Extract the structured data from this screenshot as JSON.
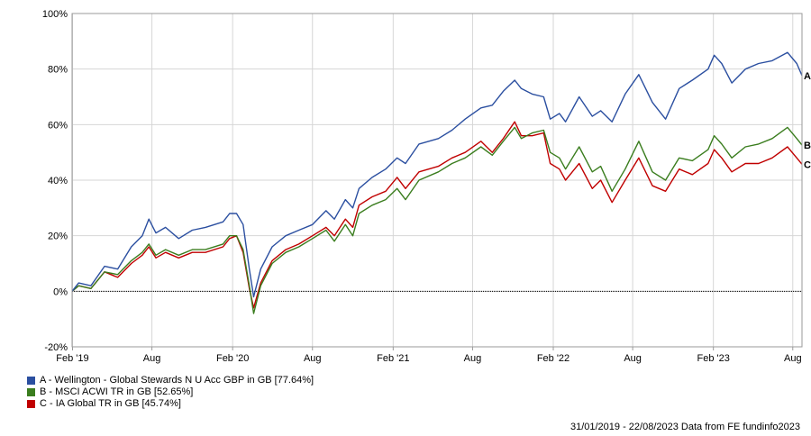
{
  "chart_data": {
    "type": "line",
    "x_range": [
      "2019-01-31",
      "2023-08-22"
    ],
    "x_ticks": [
      {
        "date": "2019-02-01",
        "label": "Feb '19"
      },
      {
        "date": "2019-08-01",
        "label": "Aug"
      },
      {
        "date": "2020-02-01",
        "label": "Feb '20"
      },
      {
        "date": "2020-08-01",
        "label": "Aug"
      },
      {
        "date": "2021-02-01",
        "label": "Feb '21"
      },
      {
        "date": "2021-08-01",
        "label": "Aug"
      },
      {
        "date": "2022-02-01",
        "label": "Feb '22"
      },
      {
        "date": "2022-08-01",
        "label": "Aug"
      },
      {
        "date": "2023-02-01",
        "label": "Feb '23"
      },
      {
        "date": "2023-08-01",
        "label": "Aug"
      }
    ],
    "ylim": [
      -20,
      100
    ],
    "y_ticks": [
      -20,
      0,
      20,
      40,
      60,
      80,
      100
    ],
    "y_tick_labels": [
      "-20%",
      "0%",
      "20%",
      "40%",
      "60%",
      "80%",
      "100%"
    ],
    "grid": true,
    "zero_line": true,
    "legend_placement": "bottom-left",
    "series": [
      {
        "name": "A - Wellington - Global Stewards N U Acc GBP in GB [77.64%]",
        "end_label": "A",
        "color": "#2b4fa0",
        "points": [
          [
            "2019-01-31",
            0
          ],
          [
            "2019-02-15",
            3
          ],
          [
            "2019-03-15",
            2
          ],
          [
            "2019-04-15",
            9
          ],
          [
            "2019-05-15",
            8
          ],
          [
            "2019-06-15",
            16
          ],
          [
            "2019-07-10",
            20
          ],
          [
            "2019-07-25",
            26
          ],
          [
            "2019-08-10",
            21
          ],
          [
            "2019-09-01",
            23
          ],
          [
            "2019-10-01",
            19
          ],
          [
            "2019-11-01",
            22
          ],
          [
            "2019-12-01",
            23
          ],
          [
            "2020-01-10",
            25
          ],
          [
            "2020-01-25",
            28
          ],
          [
            "2020-02-10",
            28
          ],
          [
            "2020-02-25",
            24
          ],
          [
            "2020-03-10",
            8
          ],
          [
            "2020-03-20",
            -2
          ],
          [
            "2020-04-05",
            8
          ],
          [
            "2020-05-01",
            16
          ],
          [
            "2020-06-01",
            20
          ],
          [
            "2020-07-01",
            22
          ],
          [
            "2020-08-01",
            24
          ],
          [
            "2020-09-01",
            29
          ],
          [
            "2020-09-20",
            26
          ],
          [
            "2020-10-15",
            33
          ],
          [
            "2020-11-01",
            30
          ],
          [
            "2020-11-15",
            37
          ],
          [
            "2020-12-15",
            41
          ],
          [
            "2021-01-15",
            44
          ],
          [
            "2021-02-10",
            48
          ],
          [
            "2021-03-01",
            46
          ],
          [
            "2021-04-01",
            53
          ],
          [
            "2021-05-15",
            55
          ],
          [
            "2021-06-15",
            58
          ],
          [
            "2021-07-15",
            62
          ],
          [
            "2021-08-20",
            66
          ],
          [
            "2021-09-15",
            67
          ],
          [
            "2021-10-10",
            72
          ],
          [
            "2021-11-05",
            76
          ],
          [
            "2021-11-20",
            73
          ],
          [
            "2021-12-15",
            71
          ],
          [
            "2022-01-10",
            70
          ],
          [
            "2022-01-25",
            62
          ],
          [
            "2022-02-15",
            64
          ],
          [
            "2022-03-01",
            61
          ],
          [
            "2022-04-01",
            70
          ],
          [
            "2022-05-01",
            63
          ],
          [
            "2022-05-20",
            65
          ],
          [
            "2022-06-15",
            61
          ],
          [
            "2022-07-15",
            71
          ],
          [
            "2022-08-15",
            78
          ],
          [
            "2022-09-15",
            68
          ],
          [
            "2022-10-15",
            62
          ],
          [
            "2022-11-15",
            73
          ],
          [
            "2022-12-15",
            76
          ],
          [
            "2023-01-20",
            80
          ],
          [
            "2023-02-03",
            85
          ],
          [
            "2023-02-20",
            82
          ],
          [
            "2023-03-15",
            75
          ],
          [
            "2023-04-15",
            80
          ],
          [
            "2023-05-15",
            82
          ],
          [
            "2023-06-15",
            83
          ],
          [
            "2023-07-20",
            86
          ],
          [
            "2023-08-10",
            82
          ],
          [
            "2023-08-22",
            77.64
          ]
        ]
      },
      {
        "name": "B - MSCI ACWI TR in GB [52.65%]",
        "end_label": "B",
        "color": "#3a7d1e",
        "points": [
          [
            "2019-01-31",
            0
          ],
          [
            "2019-02-15",
            2
          ],
          [
            "2019-03-15",
            1
          ],
          [
            "2019-04-15",
            7
          ],
          [
            "2019-05-15",
            6
          ],
          [
            "2019-06-15",
            11
          ],
          [
            "2019-07-10",
            14
          ],
          [
            "2019-07-25",
            17
          ],
          [
            "2019-08-10",
            13
          ],
          [
            "2019-09-01",
            15
          ],
          [
            "2019-10-01",
            13
          ],
          [
            "2019-11-01",
            15
          ],
          [
            "2019-12-01",
            15
          ],
          [
            "2020-01-10",
            17
          ],
          [
            "2020-01-25",
            20
          ],
          [
            "2020-02-10",
            20
          ],
          [
            "2020-02-25",
            15
          ],
          [
            "2020-03-10",
            2
          ],
          [
            "2020-03-20",
            -8
          ],
          [
            "2020-04-05",
            2
          ],
          [
            "2020-05-01",
            10
          ],
          [
            "2020-06-01",
            14
          ],
          [
            "2020-07-01",
            16
          ],
          [
            "2020-08-01",
            19
          ],
          [
            "2020-09-01",
            22
          ],
          [
            "2020-09-20",
            18
          ],
          [
            "2020-10-15",
            24
          ],
          [
            "2020-11-01",
            20
          ],
          [
            "2020-11-15",
            28
          ],
          [
            "2020-12-15",
            31
          ],
          [
            "2021-01-15",
            33
          ],
          [
            "2021-02-10",
            37
          ],
          [
            "2021-03-01",
            33
          ],
          [
            "2021-04-01",
            40
          ],
          [
            "2021-05-15",
            43
          ],
          [
            "2021-06-15",
            46
          ],
          [
            "2021-07-15",
            48
          ],
          [
            "2021-08-20",
            52
          ],
          [
            "2021-09-15",
            49
          ],
          [
            "2021-10-10",
            54
          ],
          [
            "2021-11-05",
            59
          ],
          [
            "2021-11-20",
            55
          ],
          [
            "2021-12-15",
            57
          ],
          [
            "2022-01-10",
            58
          ],
          [
            "2022-01-25",
            50
          ],
          [
            "2022-02-15",
            48
          ],
          [
            "2022-03-01",
            44
          ],
          [
            "2022-04-01",
            52
          ],
          [
            "2022-05-01",
            43
          ],
          [
            "2022-05-20",
            45
          ],
          [
            "2022-06-15",
            36
          ],
          [
            "2022-07-15",
            44
          ],
          [
            "2022-08-15",
            54
          ],
          [
            "2022-09-15",
            43
          ],
          [
            "2022-10-15",
            40
          ],
          [
            "2022-11-15",
            48
          ],
          [
            "2022-12-15",
            47
          ],
          [
            "2023-01-20",
            51
          ],
          [
            "2023-02-03",
            56
          ],
          [
            "2023-02-20",
            53
          ],
          [
            "2023-03-15",
            48
          ],
          [
            "2023-04-15",
            52
          ],
          [
            "2023-05-15",
            53
          ],
          [
            "2023-06-15",
            55
          ],
          [
            "2023-07-20",
            59
          ],
          [
            "2023-08-10",
            55
          ],
          [
            "2023-08-22",
            52.65
          ]
        ]
      },
      {
        "name": "C - IA Global TR in GB [45.74%]",
        "end_label": "C",
        "color": "#c00000",
        "points": [
          [
            "2019-01-31",
            0
          ],
          [
            "2019-02-15",
            2
          ],
          [
            "2019-03-15",
            1
          ],
          [
            "2019-04-15",
            7
          ],
          [
            "2019-05-15",
            5
          ],
          [
            "2019-06-15",
            10
          ],
          [
            "2019-07-10",
            13
          ],
          [
            "2019-07-25",
            16
          ],
          [
            "2019-08-10",
            12
          ],
          [
            "2019-09-01",
            14
          ],
          [
            "2019-10-01",
            12
          ],
          [
            "2019-11-01",
            14
          ],
          [
            "2019-12-01",
            14
          ],
          [
            "2020-01-10",
            16
          ],
          [
            "2020-01-25",
            19
          ],
          [
            "2020-02-10",
            20
          ],
          [
            "2020-02-25",
            14
          ],
          [
            "2020-03-10",
            1
          ],
          [
            "2020-03-20",
            -6
          ],
          [
            "2020-04-05",
            3
          ],
          [
            "2020-05-01",
            11
          ],
          [
            "2020-06-01",
            15
          ],
          [
            "2020-07-01",
            17
          ],
          [
            "2020-08-01",
            20
          ],
          [
            "2020-09-01",
            23
          ],
          [
            "2020-09-20",
            20
          ],
          [
            "2020-10-15",
            26
          ],
          [
            "2020-11-01",
            23
          ],
          [
            "2020-11-15",
            31
          ],
          [
            "2020-12-15",
            34
          ],
          [
            "2021-01-15",
            36
          ],
          [
            "2021-02-10",
            41
          ],
          [
            "2021-03-01",
            37
          ],
          [
            "2021-04-01",
            43
          ],
          [
            "2021-05-15",
            45
          ],
          [
            "2021-06-15",
            48
          ],
          [
            "2021-07-15",
            50
          ],
          [
            "2021-08-20",
            54
          ],
          [
            "2021-09-15",
            50
          ],
          [
            "2021-10-10",
            55
          ],
          [
            "2021-11-05",
            61
          ],
          [
            "2021-11-20",
            56
          ],
          [
            "2021-12-15",
            56
          ],
          [
            "2022-01-10",
            57
          ],
          [
            "2022-01-25",
            46
          ],
          [
            "2022-02-15",
            44
          ],
          [
            "2022-03-01",
            40
          ],
          [
            "2022-04-01",
            46
          ],
          [
            "2022-05-01",
            37
          ],
          [
            "2022-05-20",
            40
          ],
          [
            "2022-06-15",
            32
          ],
          [
            "2022-07-15",
            40
          ],
          [
            "2022-08-15",
            48
          ],
          [
            "2022-09-15",
            38
          ],
          [
            "2022-10-15",
            36
          ],
          [
            "2022-11-15",
            44
          ],
          [
            "2022-12-15",
            42
          ],
          [
            "2023-01-20",
            46
          ],
          [
            "2023-02-03",
            51
          ],
          [
            "2023-02-20",
            48
          ],
          [
            "2023-03-15",
            43
          ],
          [
            "2023-04-15",
            46
          ],
          [
            "2023-05-15",
            46
          ],
          [
            "2023-06-15",
            48
          ],
          [
            "2023-07-20",
            52
          ],
          [
            "2023-08-10",
            48
          ],
          [
            "2023-08-22",
            45.74
          ]
        ]
      }
    ]
  },
  "footer": {
    "date_range": "31/01/2019 - 22/08/2023",
    "source": "Data from FE fundinfo2023"
  }
}
